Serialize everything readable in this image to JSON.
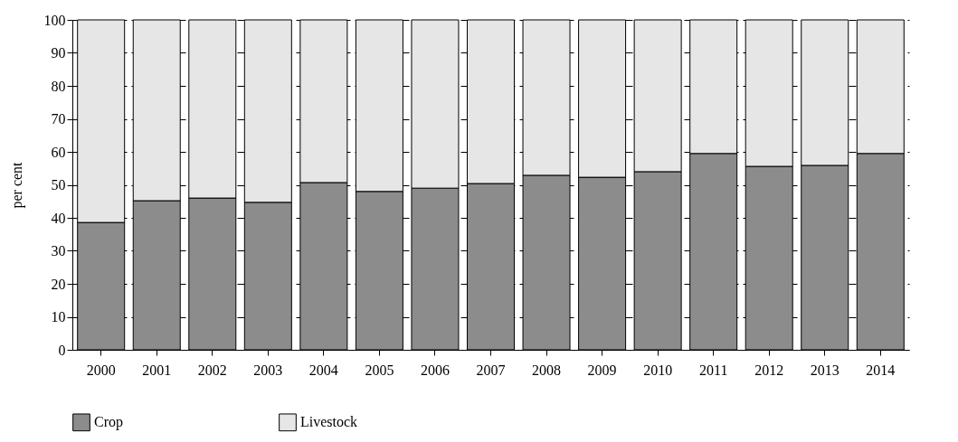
{
  "chart_data": {
    "type": "bar",
    "ylabel": "per cent",
    "categories": [
      "2000",
      "2001",
      "2002",
      "2003",
      "2004",
      "2005",
      "2006",
      "2007",
      "2008",
      "2009",
      "2010",
      "2011",
      "2012",
      "2013",
      "2014"
    ],
    "stacked": true,
    "series": [
      {
        "name": "Crop",
        "color": "#8c8c8c",
        "values": [
          38.6,
          45.2,
          46,
          44.7,
          50.7,
          48,
          49,
          50.4,
          52.9,
          52.3,
          54,
          59.5,
          55.6,
          55.9,
          59.5
        ]
      },
      {
        "name": "Livestock",
        "color": "#e6e6e6",
        "values": [
          61.4,
          54.8,
          54,
          55.3,
          49.3,
          52,
          51,
          49.6,
          47.1,
          47.7,
          46,
          40.5,
          44.4,
          44.1,
          40.5
        ]
      }
    ],
    "ylim": [
      0,
      100
    ],
    "yticks": [
      0,
      10,
      20,
      30,
      40,
      50,
      60,
      70,
      80,
      90,
      100
    ],
    "grid": "y",
    "legend": "bottom"
  }
}
